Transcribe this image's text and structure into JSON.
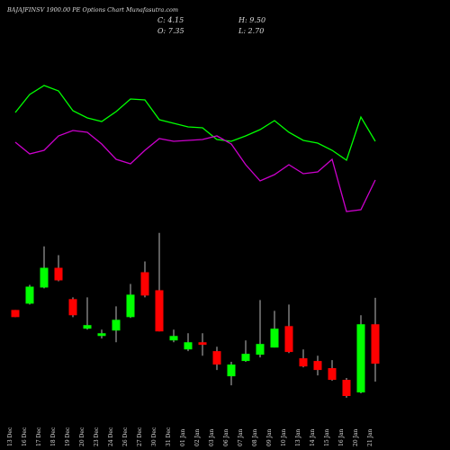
{
  "chart_data": {
    "type": "candlestick",
    "title": "BAJAJFINSV 1900.00 PE Options Chart Munafasutra.com",
    "ohlc_labels": [
      "C: 4.15",
      "H: 9.50",
      "O: 7.35",
      "L: 2.70"
    ],
    "categories": [
      "13 Dec",
      "16 Dec",
      "17 Dec",
      "18 Dec",
      "19 Dec",
      "20 Dec",
      "23 Dec",
      "24 Dec",
      "26 Dec",
      "27 Dec",
      "30 Dec",
      "31 Dec",
      "01 Jan",
      "02 Jan",
      "03 Jan",
      "06 Jan",
      "07 Jan",
      "08 Jan",
      "09 Jan",
      "10 Jan",
      "13 Jan",
      "14 Jan",
      "15 Jan",
      "16 Jan",
      "20 Jan",
      "21 Jan"
    ],
    "open": [
      8.51,
      9.02,
      10.33,
      11.93,
      9.39,
      6.99,
      6.4,
      6.84,
      7.93,
      11.57,
      10.11,
      6.04,
      5.31,
      5.89,
      5.17,
      3.13,
      4.37,
      4.88,
      5.46,
      7.2,
      4.59,
      4.37,
      3.79,
      2.84,
      1.82,
      7.35
    ],
    "high": [
      8.51,
      10.55,
      13.67,
      12.95,
      9.53,
      9.53,
      6.91,
      8.8,
      10.62,
      12.44,
      14.76,
      6.91,
      6.62,
      6.62,
      5.53,
      4.3,
      6.04,
      9.31,
      8.44,
      8.95,
      5.31,
      4.8,
      4.44,
      2.99,
      8.08,
      9.5
    ],
    "low": [
      7.93,
      8.95,
      10.26,
      10.84,
      7.93,
      6.91,
      6.19,
      5.89,
      7.86,
      9.53,
      6.77,
      5.89,
      5.17,
      4.8,
      3.64,
      2.4,
      4.3,
      4.66,
      5.46,
      5.02,
      3.86,
      3.2,
      2.77,
      1.39,
      1.75,
      2.7
    ],
    "close": [
      7.93,
      10.4,
      11.93,
      10.91,
      8.08,
      7.28,
      6.62,
      7.71,
      9.75,
      9.68,
      6.77,
      6.4,
      5.89,
      5.68,
      4.08,
      4.08,
      4.95,
      5.75,
      6.99,
      5.1,
      3.93,
      3.64,
      2.84,
      1.53,
      7.35,
      4.15
    ],
    "up_color": "#00ff00",
    "down_color": "#ff0000",
    "ylim": [
      0.8,
      15.4
    ],
    "lines": [
      {
        "color": "#00ff00",
        "values": [
          125,
          145,
          155,
          149,
          127,
          119,
          115,
          126,
          140,
          139,
          117,
          113,
          109,
          108,
          95,
          93,
          99,
          106,
          116,
          103,
          94,
          91,
          83,
          72,
          120,
          93
        ]
      },
      {
        "color": "#cc00cc",
        "values": [
          92,
          79,
          83,
          99,
          105,
          103,
          90,
          73,
          68,
          83,
          96,
          93,
          94,
          95,
          99,
          90,
          67,
          49,
          56,
          67,
          57,
          59,
          73,
          15,
          17,
          50
        ]
      }
    ],
    "lines_ylim": [
      0,
      200
    ]
  }
}
